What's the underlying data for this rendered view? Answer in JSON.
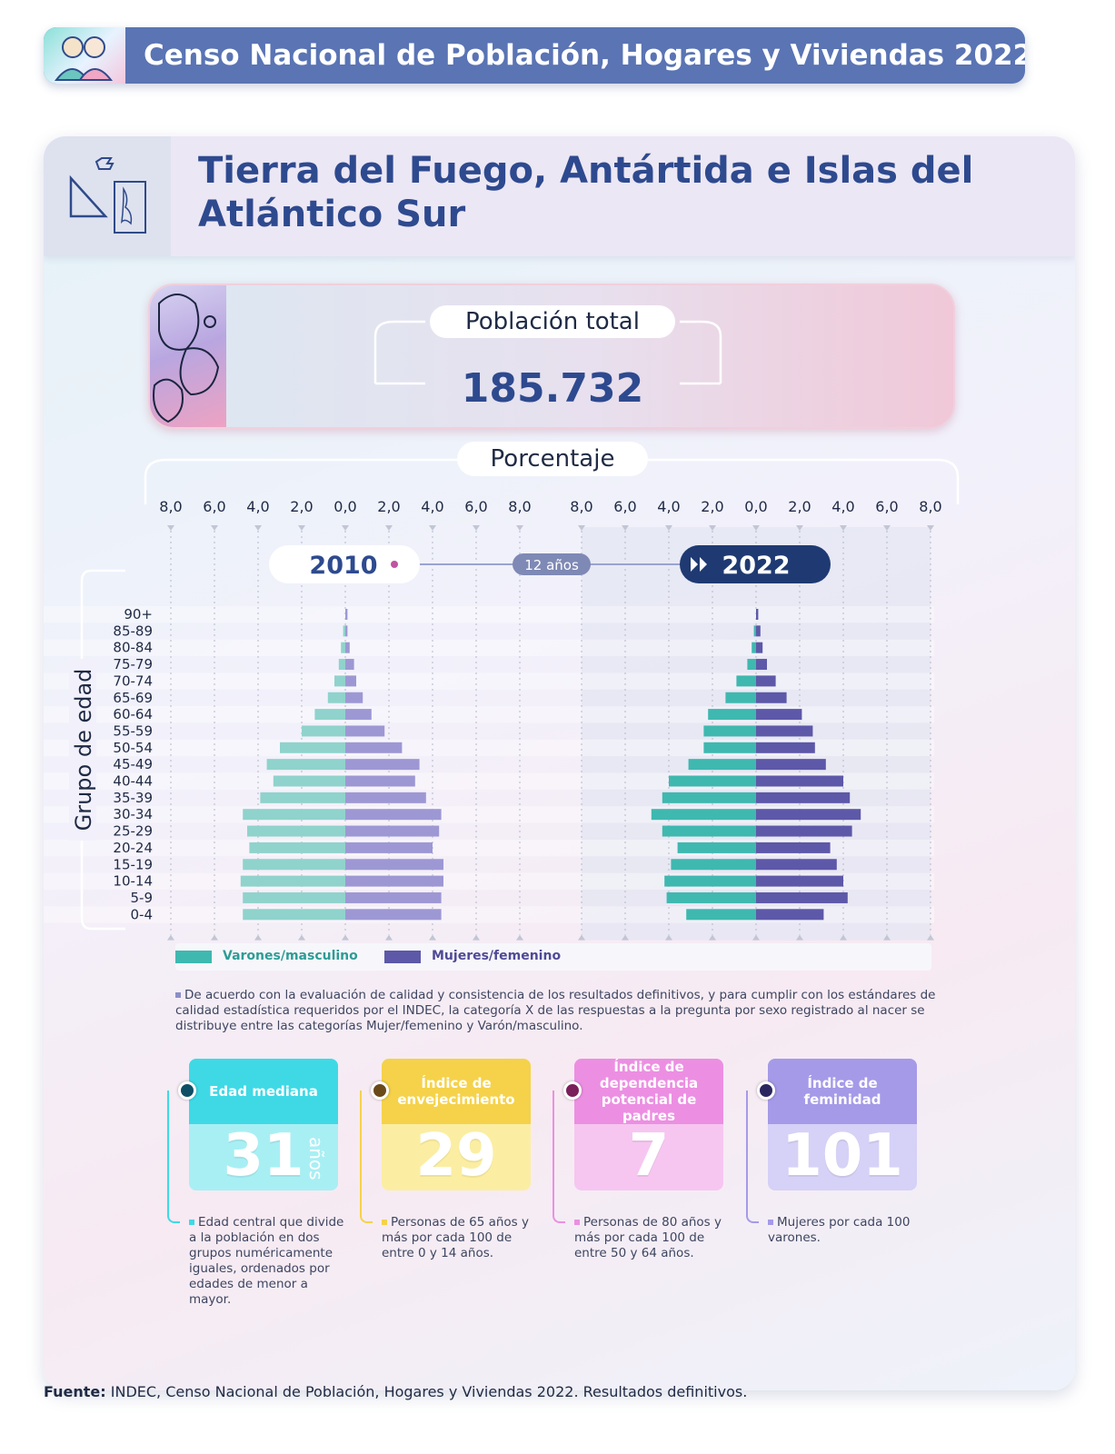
{
  "banner": {
    "title": "Censo Nacional de Población, Hogares y Viviendas 2022",
    "logo_icon": "census-people-icon"
  },
  "province": {
    "title": "Tierra del Fuego, Antártida e Islas del Atlántico Sur",
    "icon": "province-map-icon"
  },
  "population": {
    "label": "Población total",
    "value": "185.732"
  },
  "percent_label": "Porcentaje",
  "years": {
    "left": "2010",
    "gap": "12 años",
    "right": "2022"
  },
  "legend": {
    "male": "Varones/masculino",
    "female": "Mujeres/femenino"
  },
  "note": "De acuerdo con la evaluación de calidad y consistencia de los resultados definitivos, y para cumplir con los estándares de calidad estadística requeridos por el INDEC, la categoría X de las respuestas a la pregunta por sexo registrado al nacer se distribuye entre las categorías Mujer/femenino y Varón/masculino.",
  "indicators": [
    {
      "title": "Edad mediana",
      "value": "31",
      "unit": "años",
      "desc": "Edad central que divide a la población en dos grupos numéricamente iguales, ordenados por edades de menor a mayor.",
      "color": "#3fd9e6",
      "color2": "#a8eff4",
      "dot": "#0e4f66"
    },
    {
      "title": "Índice de envejecimiento",
      "value": "29",
      "unit": "",
      "desc": "Personas de 65 años y más por cada 100 de entre 0 y 14 años.",
      "color": "#f5d24a",
      "color2": "#fbeea2",
      "dot": "#6b4a1a"
    },
    {
      "title": "Índice de dependencia potencial de padres",
      "value": "7",
      "unit": "",
      "desc": "Personas de 80 años y más por cada 100 de entre 50 y 64 años.",
      "color": "#ec8fe2",
      "color2": "#f6c6f0",
      "dot": "#7a1f5a"
    },
    {
      "title": "Índice de feminidad",
      "value": "101",
      "unit": "",
      "desc": "Mujeres por cada 100 varones.",
      "color": "#a59ae8",
      "color2": "#d6d1f6",
      "dot": "#2a2760"
    }
  ],
  "source": {
    "label": "Fuente:",
    "text": "INDEC, Censo Nacional de Población, Hogares y Viviendas 2022. Resultados definitivos."
  },
  "chart_data": {
    "type": "bar",
    "subtype": "population-pyramid",
    "ylabel": "Grupo de edad",
    "xlabel": "Porcentaje",
    "categories": [
      "90+",
      "85-89",
      "80-84",
      "75-79",
      "70-74",
      "65-69",
      "60-64",
      "55-59",
      "50-54",
      "45-49",
      "40-44",
      "35-39",
      "30-34",
      "25-29",
      "20-24",
      "15-19",
      "10-14",
      "5-9",
      "0-4"
    ],
    "tick_labels": [
      "8,0",
      "6,0",
      "4,0",
      "2,0",
      "0,0",
      "2,0",
      "4,0",
      "6,0",
      "8,0"
    ],
    "xlim": [
      -8,
      8
    ],
    "colors": {
      "male": "#3fb8b0",
      "female": "#5d58a8",
      "male_light": "#8fd3cc",
      "female_light": "#9d98d4"
    },
    "panels": [
      {
        "year": "2010",
        "series": [
          {
            "name": "Varones/masculino",
            "values": [
              0.0,
              0.1,
              0.2,
              0.3,
              0.5,
              0.8,
              1.4,
              2.0,
              3.0,
              3.6,
              3.3,
              3.9,
              4.7,
              4.5,
              4.4,
              4.7,
              4.8,
              4.7,
              4.7
            ]
          },
          {
            "name": "Mujeres/femenino",
            "values": [
              0.1,
              0.1,
              0.2,
              0.4,
              0.5,
              0.8,
              1.2,
              1.8,
              2.6,
              3.4,
              3.2,
              3.7,
              4.4,
              4.3,
              4.0,
              4.5,
              4.5,
              4.4,
              4.4
            ]
          }
        ]
      },
      {
        "year": "2022",
        "series": [
          {
            "name": "Varones/masculino",
            "values": [
              0.0,
              0.1,
              0.2,
              0.4,
              0.9,
              1.4,
              2.2,
              2.4,
              2.4,
              3.1,
              4.0,
              4.3,
              4.8,
              4.3,
              3.6,
              3.9,
              4.2,
              4.1,
              3.2
            ]
          },
          {
            "name": "Mujeres/femenino",
            "values": [
              0.1,
              0.2,
              0.3,
              0.5,
              0.9,
              1.4,
              2.1,
              2.6,
              2.7,
              3.2,
              4.0,
              4.3,
              4.8,
              4.4,
              3.4,
              3.7,
              4.0,
              4.2,
              3.1
            ]
          }
        ]
      }
    ]
  }
}
